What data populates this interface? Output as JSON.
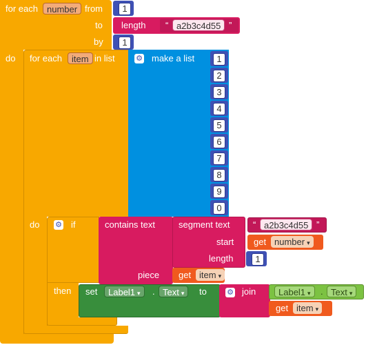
{
  "outer_loop": {
    "label_for_each": "for each",
    "var_name": "number",
    "label_from": "from",
    "from_value": "1",
    "label_to": "to",
    "to_block_label": "length",
    "to_string": "a2b3c4d55",
    "label_by": "by",
    "by_value": "1",
    "label_do": "do"
  },
  "inner_loop": {
    "label_for_each": "for each",
    "var_name": "item",
    "label_in_list": "in list",
    "list_label": "make a list",
    "list_items": [
      "1",
      "2",
      "3",
      "4",
      "5",
      "6",
      "7",
      "8",
      "9",
      "0"
    ],
    "label_do": "do"
  },
  "if_block": {
    "label_if": "if",
    "contains_label": "contains text",
    "segment_label": "segment text",
    "segment_string": "a2b3c4d55",
    "label_start": "start",
    "get_label": "get",
    "start_var": "number",
    "label_length": "length",
    "length_value": "1",
    "label_piece": "piece",
    "piece_var": "item",
    "label_then": "then"
  },
  "set_block": {
    "label_set": "set",
    "component": "Label1",
    "dot": ".",
    "property": "Text",
    "label_to": "to",
    "join_label": "join",
    "join_component": "Label1",
    "join_property": "Text",
    "join_get_label": "get",
    "join_var": "item"
  },
  "glyphs": {
    "open_quote": "“",
    "close_quote": "”",
    "dropdown": "▾",
    "gear": "⚙"
  },
  "colors": {
    "control": "#f8a800",
    "list": "#0090e0",
    "number": "#3f51b5",
    "text": "#d81b60",
    "component_set": "#388e3c",
    "component_get": "#7cc242",
    "variable_get": "#f05a1e"
  }
}
